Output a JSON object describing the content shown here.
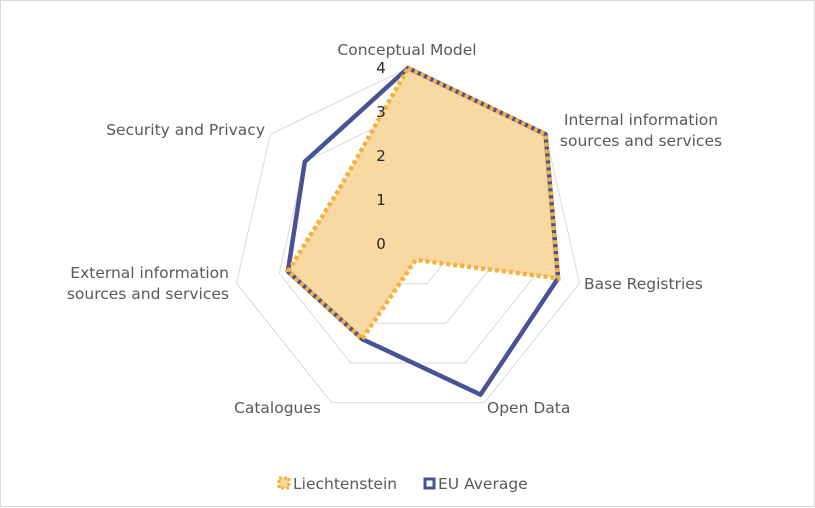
{
  "chart_data": {
    "type": "radar",
    "categories": [
      "Conceptual Model",
      "Internal information sources and services",
      "Base Registries",
      "Open Data",
      "Catalogues",
      "External information sources and services",
      "Security and Privacy"
    ],
    "category_lines": [
      [
        "Conceptual Model"
      ],
      [
        "Internal information",
        "sources and services"
      ],
      [
        "Base Registries"
      ],
      [
        "Open Data"
      ],
      [
        "Catalogues"
      ],
      [
        "External information",
        "sources and services"
      ],
      [
        "Security and Privacy"
      ]
    ],
    "ticks": [
      "0",
      "1",
      "2",
      "3",
      "4"
    ],
    "rmax": 4,
    "series": [
      {
        "name": "Liechtenstein",
        "values": [
          4,
          4,
          3.5,
          0.4,
          2.4,
          2.8,
          2.0
        ],
        "color": "#f4b13f",
        "fill": "#f9d79d",
        "dashed": true
      },
      {
        "name": "EU Average",
        "values": [
          4,
          4,
          3.5,
          3.8,
          2.4,
          2.8,
          3.0
        ],
        "color": "#4a5195",
        "dashed": false
      }
    ],
    "legend_position": "bottom",
    "grid": true
  }
}
